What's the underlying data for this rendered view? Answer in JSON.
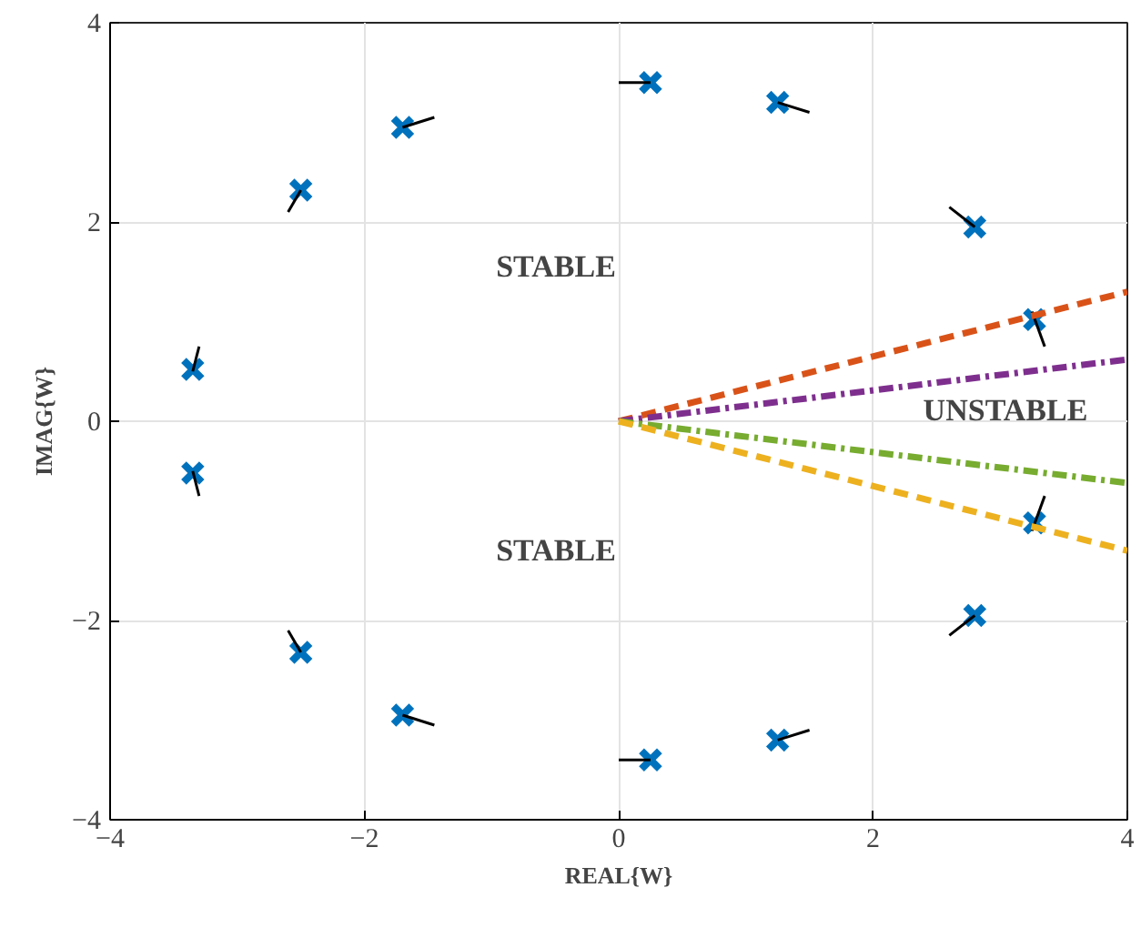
{
  "chart_data": {
    "type": "scatter",
    "xlabel": "REAL{W}",
    "ylabel": "IMAG{W}",
    "xlim": [
      -4,
      4
    ],
    "ylim": [
      -4,
      4
    ],
    "xticks": [
      -4,
      -2,
      0,
      2,
      4
    ],
    "yticks": [
      -4,
      -2,
      0,
      2,
      4
    ],
    "grid": true,
    "marker": "cross",
    "series": [
      {
        "color": "#0072bd",
        "x": [
          0.25,
          1.25,
          2.8,
          3.27,
          -3.35,
          -2.5,
          -1.7,
          0.25,
          1.25,
          2.8,
          3.27,
          -3.35,
          -2.5,
          -1.7
        ],
        "values": [
          3.4,
          3.2,
          1.95,
          1.02,
          0.52,
          2.32,
          2.95,
          -3.4,
          -3.2,
          -1.95,
          -1.02,
          -0.52,
          -2.32,
          -2.95
        ]
      },
      {
        "type": "line",
        "marker": "none",
        "color": "#000000",
        "x": [
          0,
          0.25
        ],
        "values": [
          3.4,
          3.4
        ]
      },
      {
        "type": "line",
        "marker": "none",
        "color": "#000000",
        "x": [
          1.25,
          1.5
        ],
        "values": [
          3.2,
          3.1
        ]
      },
      {
        "type": "line",
        "marker": "none",
        "color": "#000000",
        "x": [
          2.6,
          2.8
        ],
        "values": [
          2.15,
          1.95
        ]
      },
      {
        "type": "line",
        "marker": "none",
        "color": "#000000",
        "x": [
          3.25,
          3.35
        ],
        "values": [
          1.1,
          0.75
        ]
      },
      {
        "type": "line",
        "marker": "none",
        "color": "#000000",
        "x": [
          -3.35,
          -3.3
        ],
        "values": [
          0.5,
          0.75
        ]
      },
      {
        "type": "line",
        "marker": "none",
        "color": "#000000",
        "x": [
          -2.6,
          -2.5
        ],
        "values": [
          2.1,
          2.32
        ]
      },
      {
        "type": "line",
        "marker": "none",
        "color": "#000000",
        "x": [
          -1.7,
          -1.45
        ],
        "values": [
          2.95,
          3.05
        ]
      },
      {
        "type": "line",
        "marker": "none",
        "color": "#000000",
        "x": [
          0,
          0.25
        ],
        "values": [
          -3.4,
          -3.4
        ]
      },
      {
        "type": "line",
        "marker": "none",
        "color": "#000000",
        "x": [
          1.25,
          1.5
        ],
        "values": [
          -3.2,
          -3.1
        ]
      },
      {
        "type": "line",
        "marker": "none",
        "color": "#000000",
        "x": [
          2.6,
          2.8
        ],
        "values": [
          -2.15,
          -1.95
        ]
      },
      {
        "type": "line",
        "marker": "none",
        "color": "#000000",
        "x": [
          3.25,
          3.35
        ],
        "values": [
          -1.1,
          -0.75
        ]
      },
      {
        "type": "line",
        "marker": "none",
        "color": "#000000",
        "x": [
          -3.35,
          -3.3
        ],
        "values": [
          -0.5,
          -0.75
        ]
      },
      {
        "type": "line",
        "marker": "none",
        "color": "#000000",
        "x": [
          -2.6,
          -2.5
        ],
        "values": [
          -2.1,
          -2.32
        ]
      },
      {
        "type": "line",
        "marker": "none",
        "color": "#000000",
        "x": [
          -1.7,
          -1.45
        ],
        "values": [
          -2.95,
          -3.05
        ]
      },
      {
        "type": "line",
        "marker": "none",
        "color": "#d95319",
        "line_style": "dashed",
        "x": [
          0,
          4
        ],
        "values": [
          0,
          1.3
        ]
      },
      {
        "type": "line",
        "marker": "none",
        "color": "#7e2f8e",
        "line_style": "dashdot",
        "x": [
          0,
          4
        ],
        "values": [
          0,
          0.62
        ]
      },
      {
        "type": "line",
        "marker": "none",
        "color": "#77ac30",
        "line_style": "dashdot",
        "x": [
          0,
          4
        ],
        "values": [
          0,
          -0.62
        ]
      },
      {
        "type": "line",
        "marker": "none",
        "color": "#edb120",
        "line_style": "dashed",
        "x": [
          0,
          4
        ],
        "values": [
          0,
          -1.3
        ]
      }
    ],
    "annotations": [
      "STABLE",
      "STABLE",
      "UNSTABLE"
    ]
  }
}
